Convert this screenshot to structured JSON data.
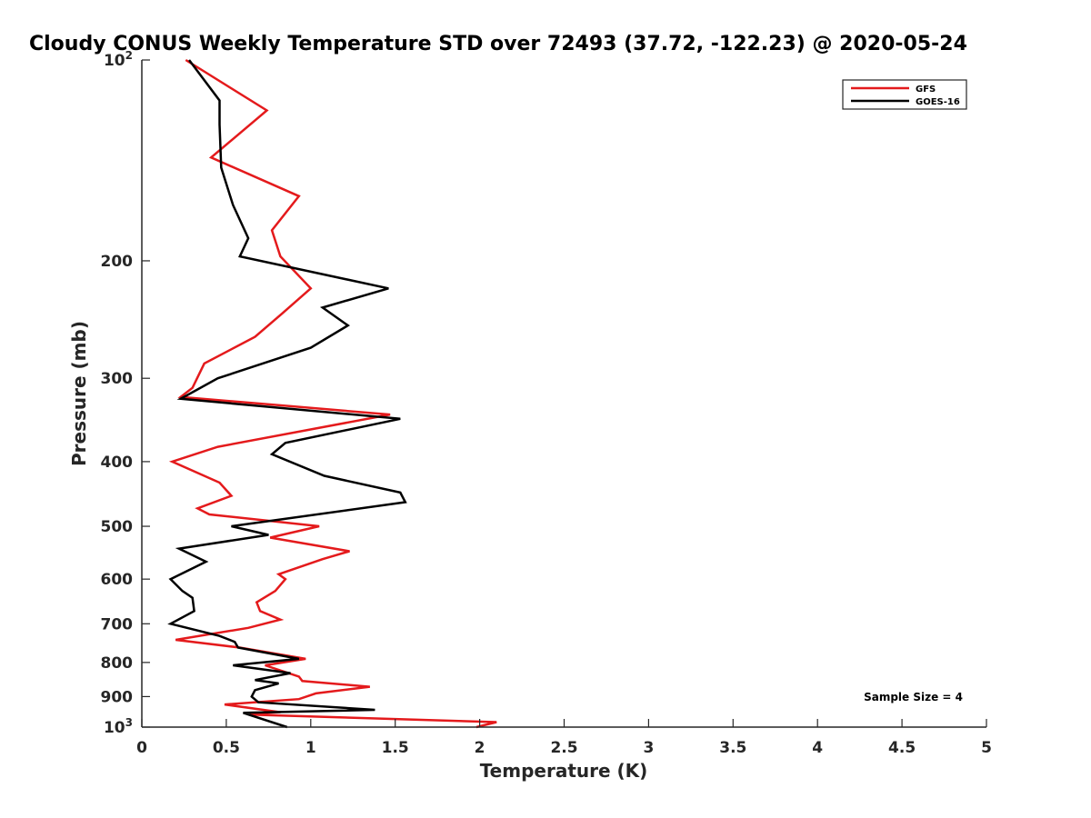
{
  "chart_data": {
    "type": "line",
    "title": "Cloudy CONUS Weekly Temperature STD over 72493 (37.72, -122.23) @ 2020-05-24",
    "xlabel": "Temperature (K)",
    "ylabel": "Pressure (mb)",
    "xlim": [
      0,
      5
    ],
    "ylim": [
      100,
      1000
    ],
    "y_scale": "log",
    "y_reversed": true,
    "grid": false,
    "legend_position": "top-right",
    "x_ticks": [
      0,
      0.5,
      1,
      1.5,
      2,
      2.5,
      3,
      3.5,
      4,
      4.5,
      5
    ],
    "x_tick_labels": [
      "0",
      "0.5",
      "1",
      "1.5",
      "2",
      "2.5",
      "3",
      "3.5",
      "4",
      "4.5",
      "5"
    ],
    "y_ticks": [
      100,
      200,
      300,
      400,
      500,
      600,
      700,
      800,
      900,
      1000
    ],
    "y_tick_labels": [
      {
        "base": "10",
        "exp": "2"
      },
      {
        "text": "200"
      },
      {
        "text": "300"
      },
      {
        "text": "400"
      },
      {
        "text": "500"
      },
      {
        "text": "600"
      },
      {
        "text": "700"
      },
      {
        "text": "800"
      },
      {
        "text": "900"
      },
      {
        "base": "10",
        "exp": "3"
      }
    ],
    "annotation": "Sample Size = 4",
    "series": [
      {
        "name": "GFS",
        "color": "#e41a1c",
        "points": [
          [
            0.26,
            100
          ],
          [
            0.74,
            119
          ],
          [
            0.41,
            140
          ],
          [
            0.93,
            160
          ],
          [
            0.77,
            180
          ],
          [
            0.82,
            197
          ],
          [
            1.0,
            220
          ],
          [
            0.83,
            240
          ],
          [
            0.67,
            260
          ],
          [
            0.37,
            285
          ],
          [
            0.3,
            310
          ],
          [
            0.23,
            320
          ],
          [
            1.47,
            340
          ],
          [
            0.45,
            380
          ],
          [
            0.18,
            400
          ],
          [
            0.46,
            430
          ],
          [
            0.53,
            450
          ],
          [
            0.33,
            470
          ],
          [
            0.4,
            480
          ],
          [
            1.05,
            500
          ],
          [
            0.76,
            520
          ],
          [
            1.23,
            545
          ],
          [
            1.07,
            560
          ],
          [
            0.81,
            590
          ],
          [
            0.85,
            600
          ],
          [
            0.79,
            625
          ],
          [
            0.68,
            650
          ],
          [
            0.7,
            670
          ],
          [
            0.82,
            690
          ],
          [
            0.63,
            710
          ],
          [
            0.2,
            740
          ],
          [
            0.58,
            760
          ],
          [
            0.97,
            790
          ],
          [
            0.73,
            808
          ],
          [
            0.93,
            840
          ],
          [
            0.95,
            853
          ],
          [
            1.35,
            870
          ],
          [
            1.03,
            890
          ],
          [
            0.93,
            908
          ],
          [
            0.49,
            925
          ],
          [
            0.82,
            950
          ],
          [
            0.64,
            958
          ],
          [
            2.1,
            983
          ],
          [
            1.98,
            1000
          ]
        ]
      },
      {
        "name": "GOES-16",
        "color": "#000000",
        "points": [
          [
            0.28,
            100
          ],
          [
            0.46,
            115
          ],
          [
            0.46,
            125
          ],
          [
            0.47,
            145
          ],
          [
            0.54,
            165
          ],
          [
            0.63,
            185
          ],
          [
            0.58,
            197
          ],
          [
            1.46,
            220
          ],
          [
            1.07,
            235
          ],
          [
            1.22,
            250
          ],
          [
            1.0,
            270
          ],
          [
            0.45,
            300
          ],
          [
            0.23,
            322
          ],
          [
            1.53,
            345
          ],
          [
            0.85,
            375
          ],
          [
            0.77,
            390
          ],
          [
            1.08,
            420
          ],
          [
            1.53,
            445
          ],
          [
            1.56,
            460
          ],
          [
            0.53,
            500
          ],
          [
            0.75,
            515
          ],
          [
            0.22,
            540
          ],
          [
            0.38,
            565
          ],
          [
            0.17,
            600
          ],
          [
            0.24,
            625
          ],
          [
            0.3,
            640
          ],
          [
            0.31,
            670
          ],
          [
            0.17,
            700
          ],
          [
            0.46,
            730
          ],
          [
            0.55,
            745
          ],
          [
            0.57,
            760
          ],
          [
            0.93,
            790
          ],
          [
            0.54,
            808
          ],
          [
            0.88,
            830
          ],
          [
            0.67,
            850
          ],
          [
            0.81,
            860
          ],
          [
            0.67,
            880
          ],
          [
            0.65,
            900
          ],
          [
            0.69,
            918
          ],
          [
            1.38,
            942
          ],
          [
            0.6,
            952
          ],
          [
            0.86,
            1000
          ]
        ]
      }
    ]
  }
}
